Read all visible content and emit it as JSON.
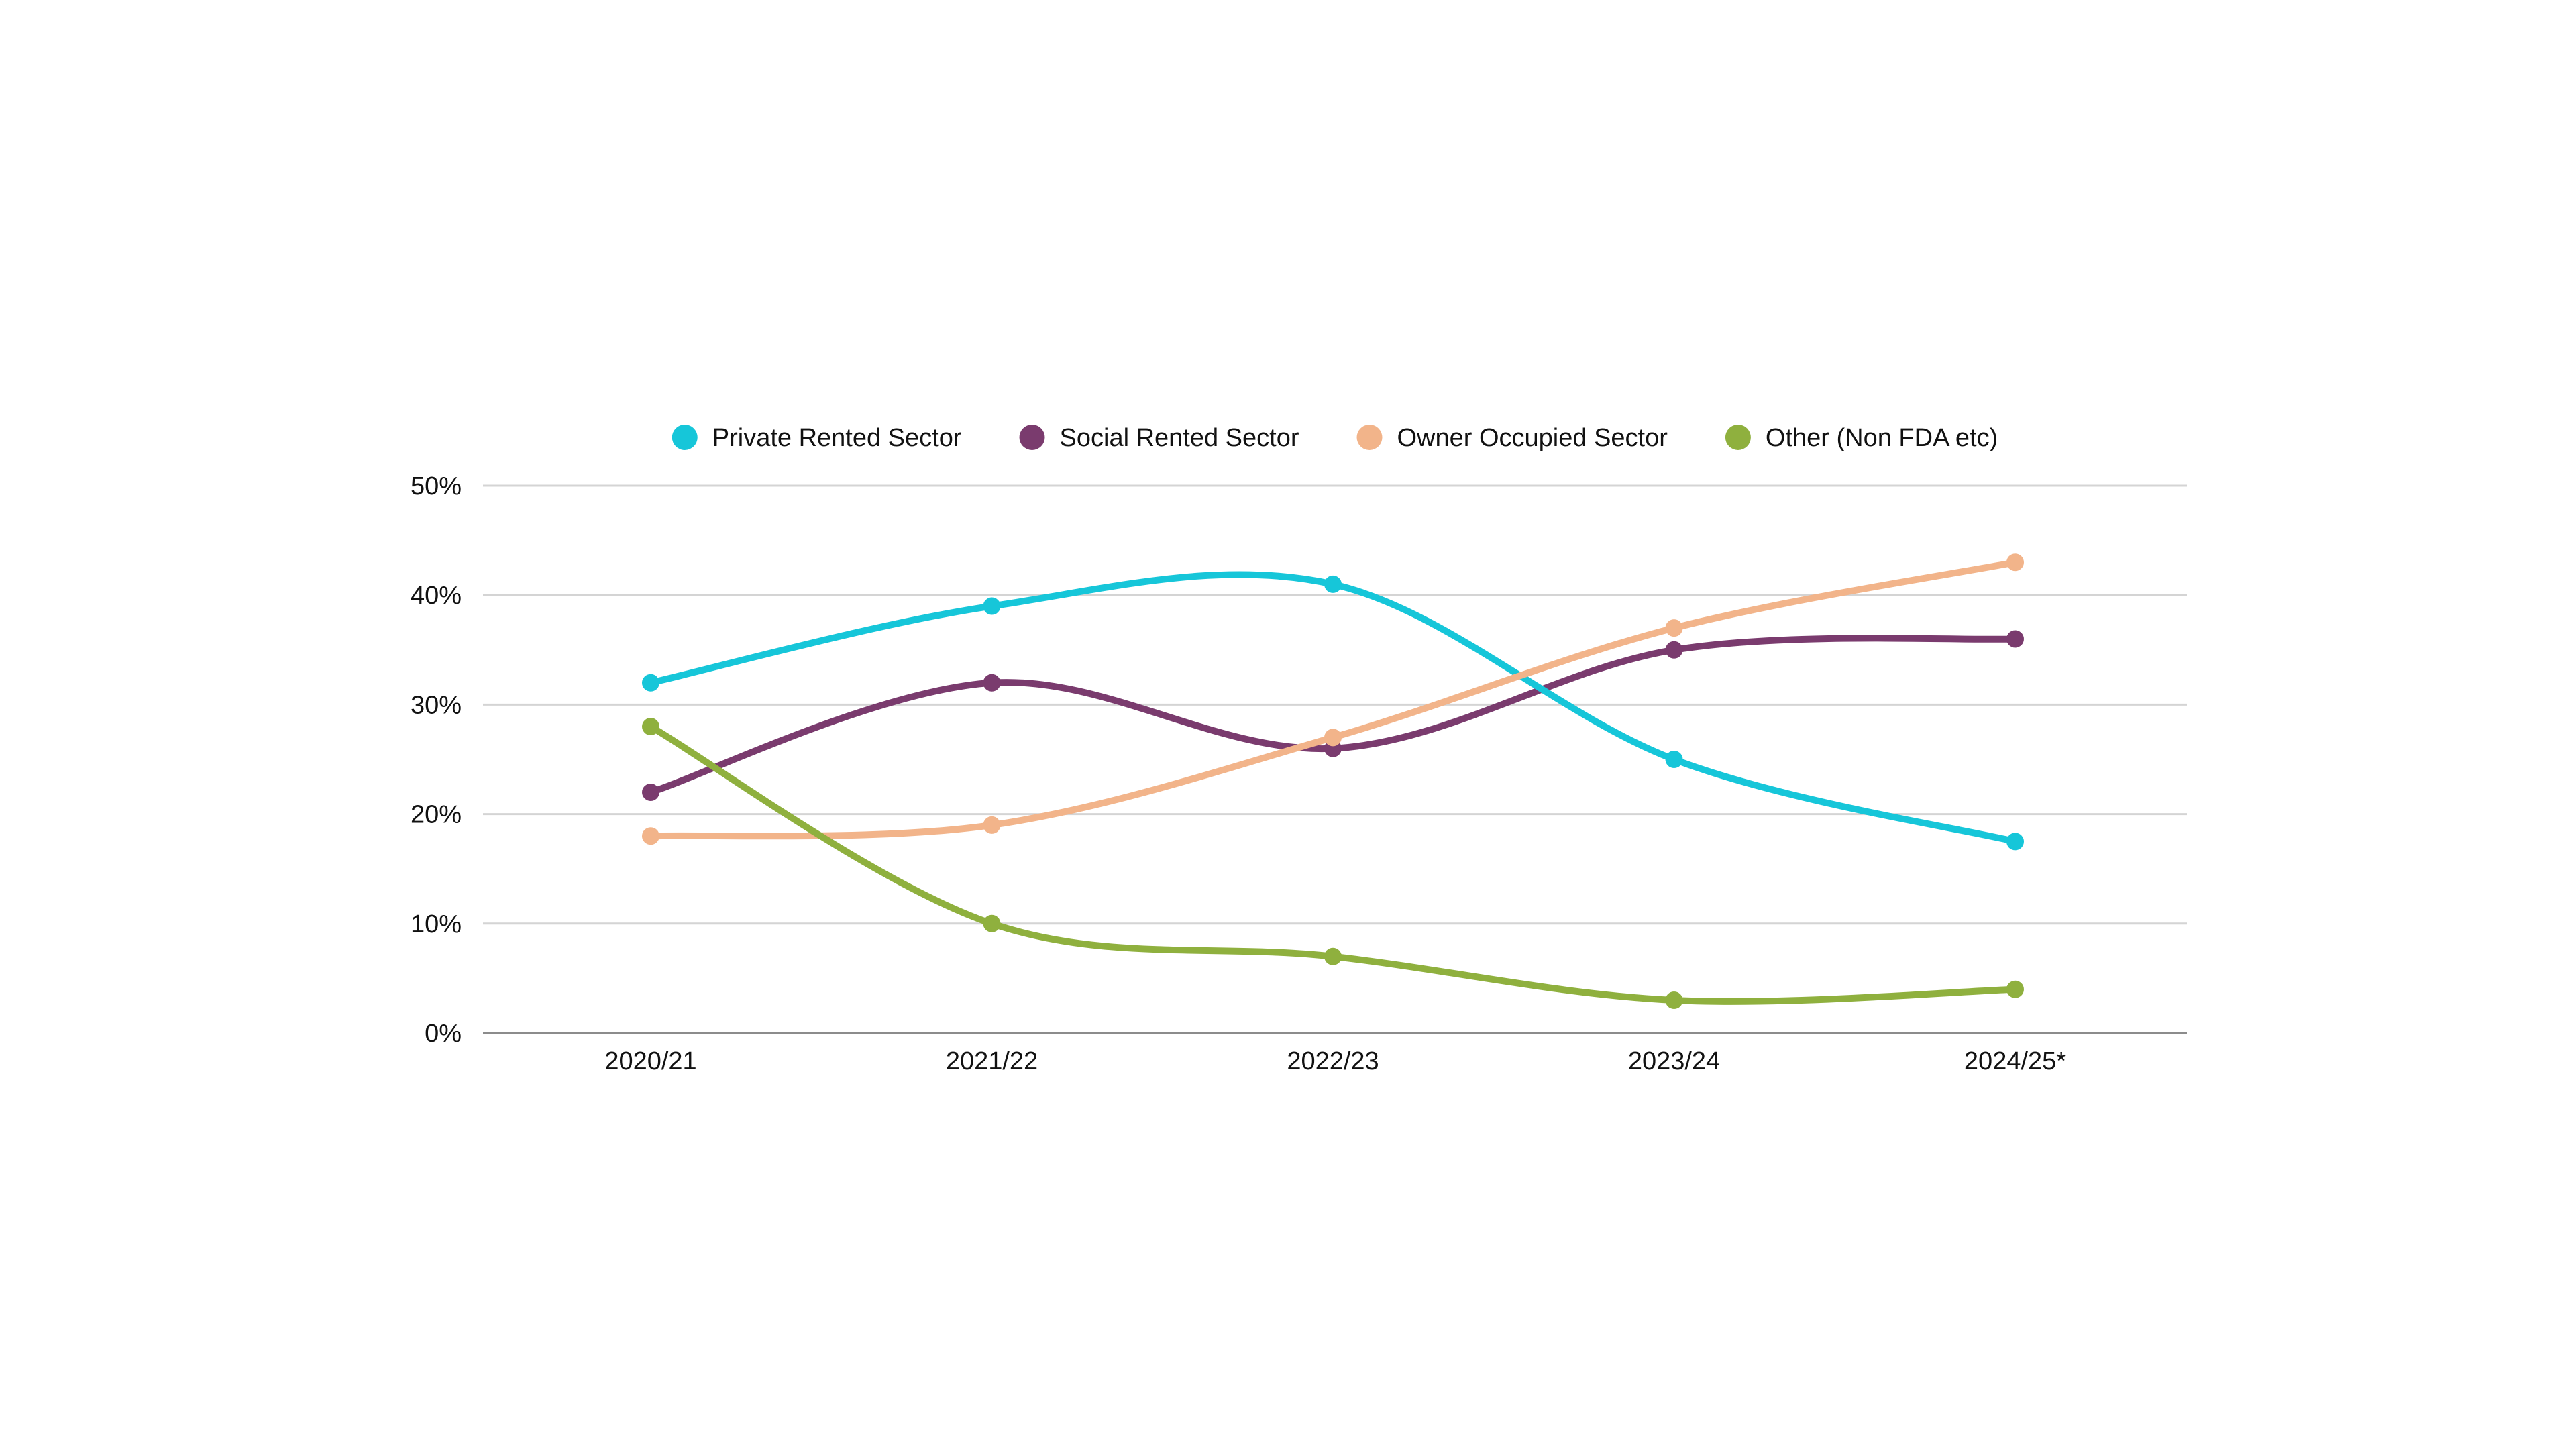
{
  "chart_data": {
    "type": "line",
    "title": "",
    "xlabel": "",
    "ylabel": "",
    "categories": [
      "2020/21",
      "2021/22",
      "2022/23",
      "2023/24",
      "2024/25*"
    ],
    "ylim": [
      0,
      50
    ],
    "yticks": [
      0,
      10,
      20,
      30,
      40,
      50
    ],
    "ytick_labels": [
      "0%",
      "10%",
      "20%",
      "30%",
      "40%",
      "50%"
    ],
    "grid": true,
    "legend_position": "top-center",
    "smooth": true,
    "series": [
      {
        "name": "Private Rented Sector",
        "color": "#16C6D9",
        "values": [
          32,
          39,
          41,
          25,
          17.5
        ]
      },
      {
        "name": "Social Rented Sector",
        "color": "#7A3B6E",
        "values": [
          22,
          32,
          26,
          35,
          36
        ]
      },
      {
        "name": "Owner Occupied Sector",
        "color": "#F2B48A",
        "values": [
          18,
          19,
          27,
          37,
          43
        ]
      },
      {
        "name": "Other (Non FDA etc)",
        "color": "#8FB03E",
        "values": [
          28,
          10,
          7,
          3,
          4
        ]
      }
    ]
  }
}
